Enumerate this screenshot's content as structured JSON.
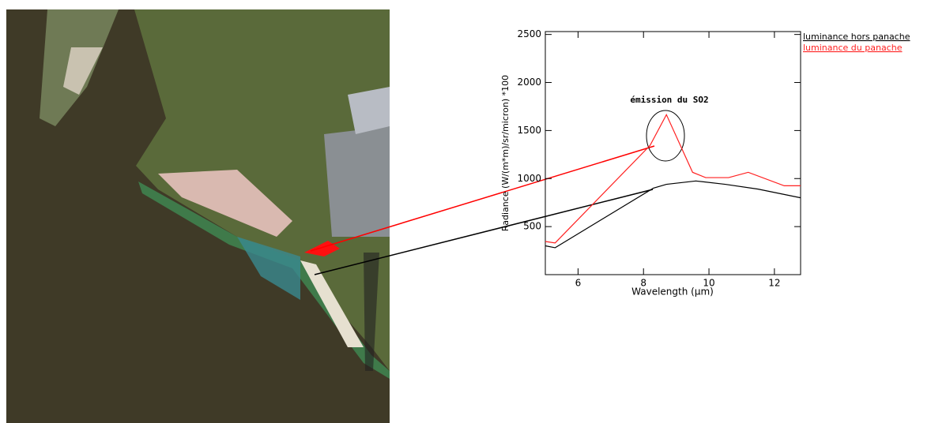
{
  "chart_data": {
    "type": "line",
    "annotation": "émission du SO2",
    "x_label": "Wavelength (μm)",
    "y_label": "Radiance (W/(m*m)/sr/micron) *100",
    "xlim": [
      5,
      12.8
    ],
    "xticks": [
      6,
      8,
      10,
      12
    ],
    "ylim": [
      0,
      2530
    ],
    "yticks": [
      500,
      1000,
      1500,
      2000,
      2500
    ],
    "legend": "top-right",
    "series": [
      {
        "name": "luminance hors panache",
        "color": "#000000",
        "x": [
          5,
          5.3,
          8.3,
          8.7,
          9.6,
          10.5,
          11.5,
          12.8
        ],
        "values": [
          300,
          280,
          900,
          940,
          975,
          940,
          890,
          800
        ]
      },
      {
        "name": "luminance du panache",
        "color": "#ff2020",
        "x": [
          5,
          5.3,
          8.2,
          8.7,
          9.5,
          9.9,
          10.6,
          11.2,
          12.3,
          12.8
        ],
        "values": [
          345,
          330,
          1345,
          1665,
          1065,
          1010,
          1010,
          1065,
          925,
          925
        ]
      }
    ]
  }
}
